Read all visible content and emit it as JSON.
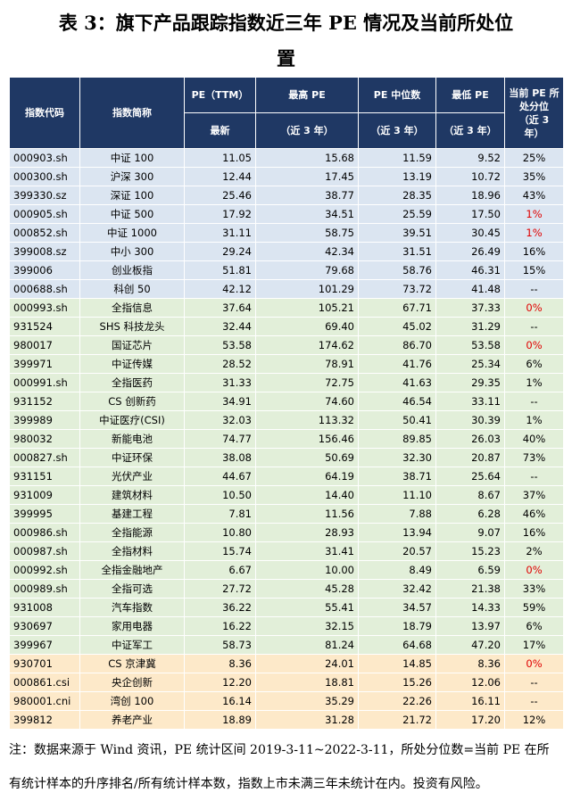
{
  "title": {
    "line1": "表 3：旗下产品跟踪指数近三年 PE 情况及当前所处位",
    "line2": "置"
  },
  "headers": {
    "code": "指数代码",
    "name": "指数简称",
    "pe_ttm_top": "PE（TTM）",
    "pe_ttm_bottom": "最新",
    "max_top": "最高 PE",
    "max_bottom": "（近 3 年）",
    "median_top": "PE 中位数",
    "median_bottom": "（近 3 年）",
    "min_top": "最低 PE",
    "min_bottom": "（近 3 年）",
    "pct_line1": "当前 PE 所",
    "pct_line2": "处分位",
    "pct_line3": "（近 3",
    "pct_line4": "年）"
  },
  "rows": [
    {
      "code": "000903.sh",
      "name": "中证 100",
      "pe": "11.05",
      "max": "15.68",
      "median": "11.59",
      "min": "9.52",
      "pct": "25%",
      "group": "blue",
      "red": false
    },
    {
      "code": "000300.sh",
      "name": "沪深 300",
      "pe": "12.44",
      "max": "17.45",
      "median": "13.19",
      "min": "10.72",
      "pct": "35%",
      "group": "blue",
      "red": false
    },
    {
      "code": "399330.sz",
      "name": "深证 100",
      "pe": "25.46",
      "max": "38.77",
      "median": "28.35",
      "min": "18.96",
      "pct": "43%",
      "group": "blue",
      "red": false
    },
    {
      "code": "000905.sh",
      "name": "中证 500",
      "pe": "17.92",
      "max": "34.51",
      "median": "25.59",
      "min": "17.50",
      "pct": "1%",
      "group": "blue",
      "red": true
    },
    {
      "code": "000852.sh",
      "name": "中证 1000",
      "pe": "31.11",
      "max": "58.75",
      "median": "39.51",
      "min": "30.45",
      "pct": "1%",
      "group": "blue",
      "red": true
    },
    {
      "code": "399008.sz",
      "name": "中小 300",
      "pe": "29.24",
      "max": "42.34",
      "median": "31.51",
      "min": "26.49",
      "pct": "16%",
      "group": "blue",
      "red": false
    },
    {
      "code": "399006",
      "name": "创业板指",
      "pe": "51.81",
      "max": "79.68",
      "median": "58.76",
      "min": "46.31",
      "pct": "15%",
      "group": "blue",
      "red": false
    },
    {
      "code": "000688.sh",
      "name": "科创 50",
      "pe": "42.12",
      "max": "101.29",
      "median": "73.72",
      "min": "41.48",
      "pct": "--",
      "group": "blue",
      "red": false
    },
    {
      "code": "000993.sh",
      "name": "全指信息",
      "pe": "37.64",
      "max": "105.21",
      "median": "67.71",
      "min": "37.33",
      "pct": "0%",
      "group": "green",
      "red": true
    },
    {
      "code": "931524",
      "name": "SHS 科技龙头",
      "pe": "32.44",
      "max": "69.40",
      "median": "45.02",
      "min": "31.29",
      "pct": "--",
      "group": "green",
      "red": false
    },
    {
      "code": "980017",
      "name": "国证芯片",
      "pe": "53.58",
      "max": "174.62",
      "median": "86.70",
      "min": "53.58",
      "pct": "0%",
      "group": "green",
      "red": true
    },
    {
      "code": "399971",
      "name": "中证传媒",
      "pe": "28.52",
      "max": "78.91",
      "median": "41.76",
      "min": "25.34",
      "pct": "6%",
      "group": "green",
      "red": false
    },
    {
      "code": "000991.sh",
      "name": "全指医药",
      "pe": "31.33",
      "max": "72.75",
      "median": "41.63",
      "min": "29.35",
      "pct": "1%",
      "group": "green",
      "red": false
    },
    {
      "code": "931152",
      "name": "CS 创新药",
      "pe": "34.91",
      "max": "74.60",
      "median": "46.54",
      "min": "33.11",
      "pct": "--",
      "group": "green",
      "red": false
    },
    {
      "code": "399989",
      "name": "中证医疗(CSI)",
      "pe": "32.03",
      "max": "113.32",
      "median": "50.41",
      "min": "30.39",
      "pct": "1%",
      "group": "green",
      "red": false
    },
    {
      "code": "980032",
      "name": "新能电池",
      "pe": "74.77",
      "max": "156.46",
      "median": "89.85",
      "min": "26.03",
      "pct": "40%",
      "group": "green",
      "red": false
    },
    {
      "code": "000827.sh",
      "name": "中证环保",
      "pe": "38.08",
      "max": "50.69",
      "median": "32.30",
      "min": "20.87",
      "pct": "73%",
      "group": "green",
      "red": false
    },
    {
      "code": "931151",
      "name": "光伏产业",
      "pe": "44.67",
      "max": "64.19",
      "median": "38.71",
      "min": "25.64",
      "pct": "--",
      "group": "green",
      "red": false
    },
    {
      "code": "931009",
      "name": "建筑材料",
      "pe": "10.50",
      "max": "14.40",
      "median": "11.10",
      "min": "8.67",
      "pct": "37%",
      "group": "green",
      "red": false
    },
    {
      "code": "399995",
      "name": "基建工程",
      "pe": "7.81",
      "max": "11.56",
      "median": "7.88",
      "min": "6.28",
      "pct": "46%",
      "group": "green",
      "red": false
    },
    {
      "code": "000986.sh",
      "name": "全指能源",
      "pe": "10.80",
      "max": "28.93",
      "median": "13.94",
      "min": "9.07",
      "pct": "16%",
      "group": "green",
      "red": false
    },
    {
      "code": "000987.sh",
      "name": "全指材料",
      "pe": "15.74",
      "max": "31.41",
      "median": "20.57",
      "min": "15.23",
      "pct": "2%",
      "group": "green",
      "red": false
    },
    {
      "code": "000992.sh",
      "name": "全指金融地产",
      "pe": "6.67",
      "max": "10.00",
      "median": "8.49",
      "min": "6.59",
      "pct": "0%",
      "group": "green",
      "red": true
    },
    {
      "code": "000989.sh",
      "name": "全指可选",
      "pe": "27.72",
      "max": "45.28",
      "median": "32.42",
      "min": "21.38",
      "pct": "33%",
      "group": "green",
      "red": false
    },
    {
      "code": "931008",
      "name": "汽车指数",
      "pe": "36.22",
      "max": "55.41",
      "median": "34.57",
      "min": "14.33",
      "pct": "59%",
      "group": "green",
      "red": false
    },
    {
      "code": "930697",
      "name": "家用电器",
      "pe": "16.22",
      "max": "32.15",
      "median": "18.79",
      "min": "13.97",
      "pct": "6%",
      "group": "green",
      "red": false
    },
    {
      "code": "399967",
      "name": "中证军工",
      "pe": "58.73",
      "max": "81.24",
      "median": "64.68",
      "min": "47.20",
      "pct": "17%",
      "group": "green",
      "red": false
    },
    {
      "code": "930701",
      "name": "CS 京津冀",
      "pe": "8.36",
      "max": "24.01",
      "median": "14.85",
      "min": "8.36",
      "pct": "0%",
      "group": "orange",
      "red": true
    },
    {
      "code": "000861.csi",
      "name": "央企创新",
      "pe": "12.20",
      "max": "18.81",
      "median": "15.26",
      "min": "12.06",
      "pct": "--",
      "group": "orange",
      "red": false
    },
    {
      "code": "980001.cni",
      "name": "湾创 100",
      "pe": "16.14",
      "max": "35.29",
      "median": "22.26",
      "min": "16.11",
      "pct": "--",
      "group": "orange",
      "red": false
    },
    {
      "code": "399812",
      "name": "养老产业",
      "pe": "18.89",
      "max": "31.28",
      "median": "21.72",
      "min": "17.20",
      "pct": "12%",
      "group": "orange",
      "red": false
    }
  ],
  "colors": {
    "header_bg": "#1f3864",
    "blue_row": "#dbe5f1",
    "green_row": "#e2efd9",
    "orange_row": "#fde9c9",
    "highlight_red": "#e00000"
  },
  "note": {
    "line1": "注：数据来源于 Wind 资讯，PE 统计区间 2019-3-11~2022-3-11，所处分位数=当前 PE 在所",
    "line2": "有统计样本的升序排名/所有统计样本数，指数上市未满三年未统计在内。投资有风险。"
  }
}
